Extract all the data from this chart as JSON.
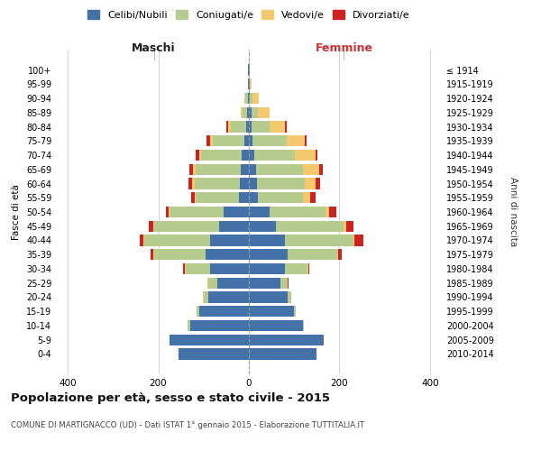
{
  "age_groups": [
    "0-4",
    "5-9",
    "10-14",
    "15-19",
    "20-24",
    "25-29",
    "30-34",
    "35-39",
    "40-44",
    "45-49",
    "50-54",
    "55-59",
    "60-64",
    "65-69",
    "70-74",
    "75-79",
    "80-84",
    "85-89",
    "90-94",
    "95-99",
    "100+"
  ],
  "birth_years": [
    "2010-2014",
    "2005-2009",
    "2000-2004",
    "1995-1999",
    "1990-1994",
    "1985-1989",
    "1980-1984",
    "1975-1979",
    "1970-1974",
    "1965-1969",
    "1960-1964",
    "1955-1959",
    "1950-1954",
    "1945-1949",
    "1940-1944",
    "1935-1939",
    "1930-1934",
    "1925-1929",
    "1920-1924",
    "1915-1919",
    "≤ 1914"
  ],
  "maschi": {
    "celibi": [
      155,
      175,
      130,
      110,
      90,
      70,
      85,
      95,
      85,
      65,
      55,
      22,
      20,
      18,
      15,
      10,
      5,
      3,
      2,
      1,
      1
    ],
    "coniugati": [
      0,
      0,
      5,
      5,
      10,
      20,
      55,
      115,
      145,
      145,
      120,
      95,
      100,
      100,
      90,
      70,
      35,
      10,
      5,
      1,
      0
    ],
    "vedovi": [
      0,
      0,
      0,
      0,
      1,
      1,
      2,
      2,
      2,
      2,
      3,
      3,
      5,
      5,
      5,
      5,
      5,
      5,
      2,
      0,
      0
    ],
    "divorziati": [
      0,
      0,
      0,
      0,
      1,
      1,
      3,
      5,
      8,
      8,
      5,
      8,
      8,
      8,
      8,
      8,
      5,
      0,
      0,
      0,
      0
    ]
  },
  "femmine": {
    "nubili": [
      150,
      165,
      120,
      100,
      85,
      70,
      80,
      85,
      80,
      60,
      45,
      20,
      18,
      15,
      12,
      8,
      5,
      5,
      2,
      1,
      1
    ],
    "coniugate": [
      0,
      0,
      2,
      3,
      8,
      15,
      50,
      110,
      150,
      150,
      125,
      100,
      105,
      105,
      90,
      75,
      40,
      15,
      5,
      1,
      0
    ],
    "vedove": [
      0,
      0,
      0,
      0,
      0,
      1,
      1,
      2,
      3,
      5,
      8,
      15,
      25,
      35,
      45,
      40,
      35,
      25,
      15,
      3,
      1
    ],
    "divorziate": [
      0,
      0,
      0,
      0,
      1,
      1,
      3,
      8,
      20,
      15,
      15,
      12,
      10,
      8,
      5,
      5,
      3,
      0,
      0,
      0,
      0
    ]
  },
  "colors": {
    "celibi": "#4472a8",
    "coniugati": "#b5cc8e",
    "vedovi": "#f5c96e",
    "divorziati": "#cc2222"
  },
  "xlim": 430,
  "title": "Popolazione per età, sesso e stato civile - 2015",
  "subtitle": "COMUNE DI MARTIGNACCO (UD) - Dati ISTAT 1° gennaio 2015 - Elaborazione TUTTITALIA.IT",
  "ylabel": "Fasce di età",
  "ylabel_right": "Anni di nascita",
  "xlabel_maschi": "Maschi",
  "xlabel_femmine": "Femmine",
  "bg_color": "#ffffff",
  "grid_color": "#cccccc"
}
